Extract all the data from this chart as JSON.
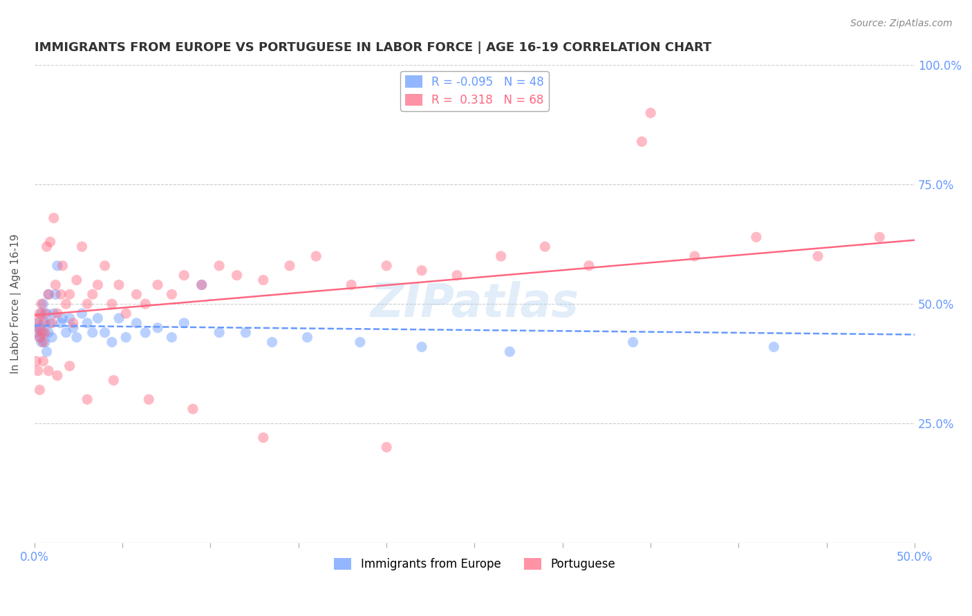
{
  "title": "IMMIGRANTS FROM EUROPE VS PORTUGUESE IN LABOR FORCE | AGE 16-19 CORRELATION CHART",
  "source": "Source: ZipAtlas.com",
  "xlabel": "",
  "ylabel": "In Labor Force | Age 16-19",
  "xlim": [
    0.0,
    0.5
  ],
  "ylim": [
    0.0,
    1.0
  ],
  "xticks": [
    0.0,
    0.05,
    0.1,
    0.15,
    0.2,
    0.25,
    0.3,
    0.35,
    0.4,
    0.45,
    0.5
  ],
  "xticklabels": [
    "0.0%",
    "",
    "",
    "",
    "",
    "",
    "",
    "",
    "",
    "",
    "50.0%"
  ],
  "yticks": [
    0.0,
    0.25,
    0.5,
    0.75,
    1.0
  ],
  "yticklabels": [
    "",
    "25.0%",
    "50.0%",
    "75.0%",
    "100.0%"
  ],
  "series": [
    {
      "name": "Immigrants from Europe",
      "color": "#6699ff",
      "R": -0.095,
      "N": 48,
      "x": [
        0.001,
        0.002,
        0.003,
        0.003,
        0.004,
        0.004,
        0.005,
        0.005,
        0.006,
        0.006,
        0.007,
        0.007,
        0.008,
        0.008,
        0.009,
        0.01,
        0.011,
        0.012,
        0.013,
        0.015,
        0.016,
        0.018,
        0.02,
        0.022,
        0.024,
        0.027,
        0.03,
        0.033,
        0.036,
        0.04,
        0.044,
        0.048,
        0.052,
        0.058,
        0.063,
        0.07,
        0.078,
        0.085,
        0.095,
        0.105,
        0.12,
        0.135,
        0.155,
        0.185,
        0.22,
        0.27,
        0.34,
        0.42
      ],
      "y": [
        0.44,
        0.46,
        0.45,
        0.43,
        0.48,
        0.42,
        0.5,
        0.44,
        0.46,
        0.42,
        0.48,
        0.4,
        0.52,
        0.44,
        0.46,
        0.43,
        0.48,
        0.52,
        0.58,
        0.46,
        0.47,
        0.44,
        0.47,
        0.45,
        0.43,
        0.48,
        0.46,
        0.44,
        0.47,
        0.44,
        0.42,
        0.47,
        0.43,
        0.46,
        0.44,
        0.45,
        0.43,
        0.46,
        0.54,
        0.44,
        0.44,
        0.42,
        0.43,
        0.42,
        0.41,
        0.4,
        0.42,
        0.41
      ]
    },
    {
      "name": "Portuguese",
      "color": "#ff6680",
      "R": 0.318,
      "N": 68,
      "x": [
        0.001,
        0.002,
        0.003,
        0.003,
        0.004,
        0.004,
        0.005,
        0.005,
        0.006,
        0.006,
        0.007,
        0.008,
        0.009,
        0.01,
        0.011,
        0.012,
        0.013,
        0.015,
        0.016,
        0.018,
        0.02,
        0.022,
        0.024,
        0.027,
        0.03,
        0.033,
        0.036,
        0.04,
        0.044,
        0.048,
        0.052,
        0.058,
        0.063,
        0.07,
        0.078,
        0.085,
        0.095,
        0.105,
        0.115,
        0.13,
        0.145,
        0.16,
        0.18,
        0.2,
        0.22,
        0.24,
        0.265,
        0.29,
        0.315,
        0.345,
        0.375,
        0.41,
        0.445,
        0.48,
        0.001,
        0.002,
        0.003,
        0.005,
        0.008,
        0.013,
        0.02,
        0.03,
        0.045,
        0.065,
        0.09,
        0.13,
        0.2,
        0.35
      ],
      "y": [
        0.45,
        0.47,
        0.43,
        0.48,
        0.44,
        0.5,
        0.46,
        0.42,
        0.48,
        0.44,
        0.62,
        0.52,
        0.63,
        0.46,
        0.68,
        0.54,
        0.48,
        0.52,
        0.58,
        0.5,
        0.52,
        0.46,
        0.55,
        0.62,
        0.5,
        0.52,
        0.54,
        0.58,
        0.5,
        0.54,
        0.48,
        0.52,
        0.5,
        0.54,
        0.52,
        0.56,
        0.54,
        0.58,
        0.56,
        0.55,
        0.58,
        0.6,
        0.54,
        0.58,
        0.57,
        0.56,
        0.6,
        0.62,
        0.58,
        0.84,
        0.6,
        0.64,
        0.6,
        0.64,
        0.38,
        0.36,
        0.32,
        0.38,
        0.36,
        0.35,
        0.37,
        0.3,
        0.34,
        0.3,
        0.28,
        0.22,
        0.2,
        0.9
      ]
    }
  ],
  "watermark": "ZIPatlas",
  "background_color": "#ffffff",
  "grid_color": "#cccccc",
  "title_color": "#333333",
  "axis_color": "#6699ff",
  "marker_size": 120,
  "marker_alpha": 0.45,
  "legend_box_color": "#ffffff",
  "legend_border_color": "#aaaaaa"
}
